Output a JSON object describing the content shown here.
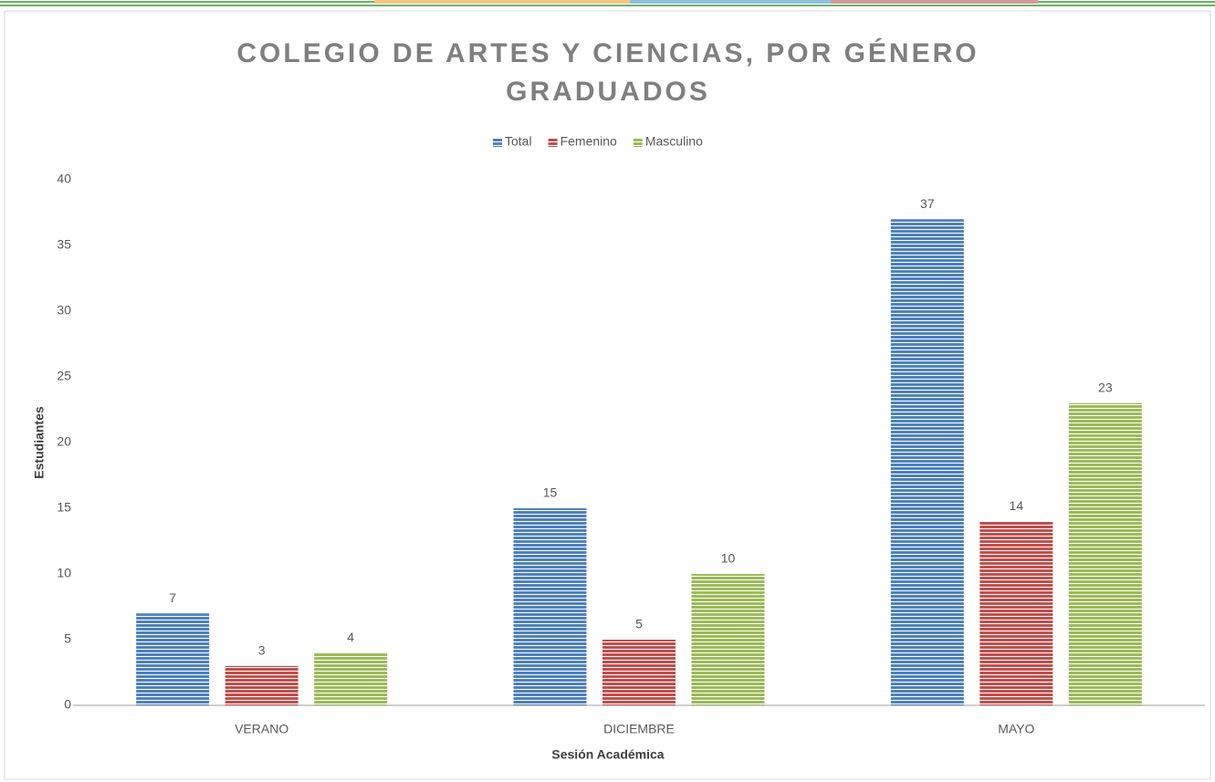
{
  "chart_data": {
    "type": "bar",
    "title": "COLEGIO DE ARTES Y CIENCIAS, POR GÉNERO",
    "subtitle": "GRADUADOS",
    "x_label": "Sesión Académica",
    "y_label": "Estudiantes",
    "categories": [
      "VERANO",
      "DICIEMBRE",
      "MAYO"
    ],
    "series": [
      {
        "name": "Total",
        "color": "#4f81bd",
        "values": [
          7,
          15,
          37
        ]
      },
      {
        "name": "Femenino",
        "color": "#c0504d",
        "values": [
          3,
          5,
          14
        ]
      },
      {
        "name": "Masculino",
        "color": "#9bbb59",
        "values": [
          4,
          10,
          23
        ]
      }
    ],
    "ylim": [
      0,
      40
    ],
    "yticks": [
      0,
      5,
      10,
      15,
      20,
      25,
      30,
      35,
      40
    ],
    "grid": false,
    "legend": "top"
  }
}
